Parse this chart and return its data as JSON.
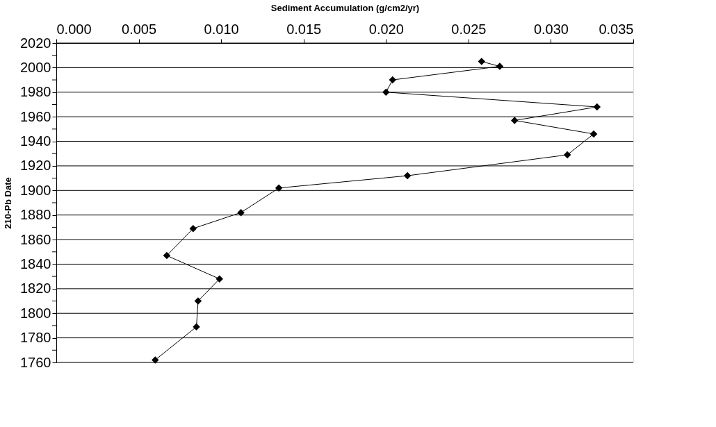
{
  "chart_data": {
    "type": "line",
    "xlabel": "Sediment Accumulation (g/cm2/yr)",
    "ylabel": "210-Pb Date",
    "series": [
      {
        "color": "#000000",
        "x": [
          0.0258,
          0.0269,
          0.0204,
          0.02,
          0.0328,
          0.0278,
          0.0326,
          0.031,
          0.0213,
          0.0135,
          0.0112,
          0.0083,
          0.0067,
          0.0099,
          0.0086,
          0.0085,
          0.006
        ],
        "values": [
          2005,
          2001,
          1990,
          1980,
          1968,
          1957,
          1946,
          1929,
          1912,
          1902,
          1882,
          1869,
          1847,
          1828,
          1810,
          1789,
          1762
        ]
      }
    ],
    "xlim": [
      0,
      0.035
    ],
    "xticks": [
      {
        "value": 0,
        "label": "0.000"
      },
      {
        "value": 0.005,
        "label": "0.005"
      },
      {
        "value": 0.01,
        "label": "0.010"
      },
      {
        "value": 0.015,
        "label": "0.015"
      },
      {
        "value": 0.02,
        "label": "0.020"
      },
      {
        "value": 0.025,
        "label": "0.025"
      },
      {
        "value": 0.03,
        "label": "0.030"
      },
      {
        "value": 0.035,
        "label": "0.035"
      }
    ],
    "ylim": [
      1760,
      2020
    ],
    "yticks": [
      1760,
      {
        "value": 1770,
        "label": null
      },
      1780,
      {
        "value": 1790,
        "label": null
      },
      1800,
      {
        "value": 1810,
        "label": null
      },
      1820,
      {
        "value": 1830,
        "label": null
      },
      1840,
      {
        "value": 1850,
        "label": null
      },
      1860,
      {
        "value": 1870,
        "label": null
      },
      1880,
      {
        "value": 1890,
        "label": null
      },
      1900,
      {
        "value": 1910,
        "label": null
      },
      1920,
      {
        "value": 1930,
        "label": null
      },
      1940,
      {
        "value": 1950,
        "label": null
      },
      1960,
      {
        "value": 1970,
        "label": null
      },
      1980,
      {
        "value": 1990,
        "label": null
      },
      2000,
      {
        "value": 2010,
        "label": null
      },
      2020
    ],
    "grid": "y",
    "marker": "diamond",
    "line_style": "solid"
  }
}
